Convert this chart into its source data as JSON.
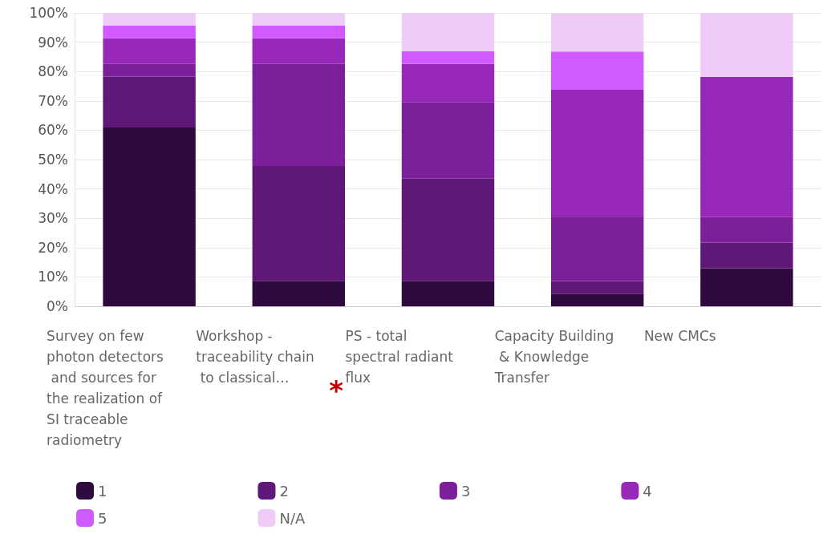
{
  "chart_data": {
    "type": "bar",
    "stacked": true,
    "categories": [
      "Survey on few photon detectors and sources for the realization of SI traceable radiometry",
      "Workshop - traceability chain to classical…",
      "PS - total spectral radiant flux",
      "Capacity Building & Knowledge Transfer",
      "New CMCs"
    ],
    "series": [
      {
        "name": "1",
        "color": "#2e0a3e",
        "values": [
          60.9,
          8.7,
          8.7,
          4.3,
          13.0
        ]
      },
      {
        "name": "2",
        "color": "#5f1878",
        "values": [
          17.4,
          39.1,
          34.8,
          4.3,
          8.7
        ]
      },
      {
        "name": "3",
        "color": "#7b1f9a",
        "values": [
          4.3,
          34.8,
          26.1,
          21.7,
          8.7
        ]
      },
      {
        "name": "4",
        "color": "#9828b8",
        "values": [
          8.7,
          8.7,
          13.0,
          43.5,
          47.8
        ]
      },
      {
        "name": "5",
        "color": "#d05aff",
        "values": [
          4.3,
          4.3,
          4.3,
          13.0,
          0
        ]
      },
      {
        "name": "N/A",
        "color": "#eeccf7",
        "values": [
          4.3,
          4.3,
          13.0,
          13.0,
          21.7
        ]
      }
    ],
    "ylim": [
      0,
      100
    ],
    "yticks": [
      {
        "value": 0,
        "label": "0%"
      },
      {
        "value": 10,
        "label": "10%"
      },
      {
        "value": 20,
        "label": "20%"
      },
      {
        "value": 30,
        "label": "30%"
      },
      {
        "value": 40,
        "label": "40%"
      },
      {
        "value": 50,
        "label": "50%"
      },
      {
        "value": 60,
        "label": "60%"
      },
      {
        "value": 70,
        "label": "70%"
      },
      {
        "value": 80,
        "label": "80%"
      },
      {
        "value": 90,
        "label": "90%"
      },
      {
        "value": 100,
        "label": "100%"
      }
    ],
    "grid": "y",
    "legend": "bottom",
    "annotations": [
      "*"
    ]
  }
}
